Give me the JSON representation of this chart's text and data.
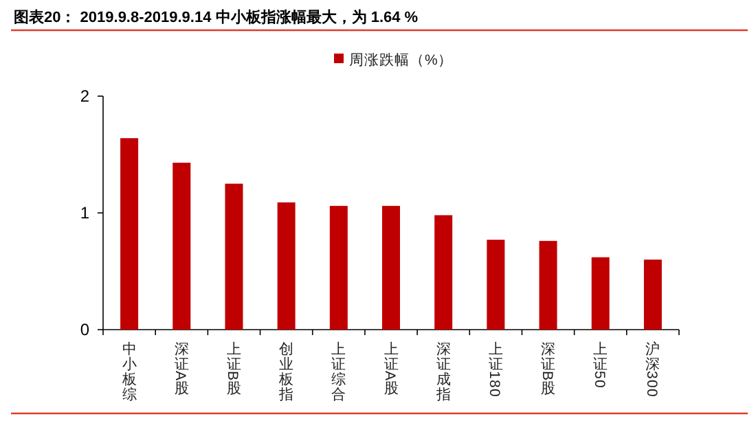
{
  "chart_data": {
    "type": "bar",
    "title": "图表20：  2019.9.8-2019.9.14 中小板指涨幅最大，为 1.64 %",
    "categories": [
      "中小板综",
      "深证A股",
      "上证B股",
      "创业板指",
      "上证综合",
      "上证A股",
      "深证成指",
      "上证180",
      "深证B股",
      "上证50",
      "沪深300"
    ],
    "series": [
      {
        "name": "周涨跌幅（%）",
        "color": "#c00000",
        "values": [
          1.64,
          1.43,
          1.25,
          1.09,
          1.06,
          1.06,
          0.98,
          0.77,
          0.76,
          0.62,
          0.6
        ]
      }
    ],
    "ylim": [
      0,
      2
    ],
    "yticks": [
      0,
      1,
      2
    ],
    "legend": "top",
    "grid": false
  }
}
